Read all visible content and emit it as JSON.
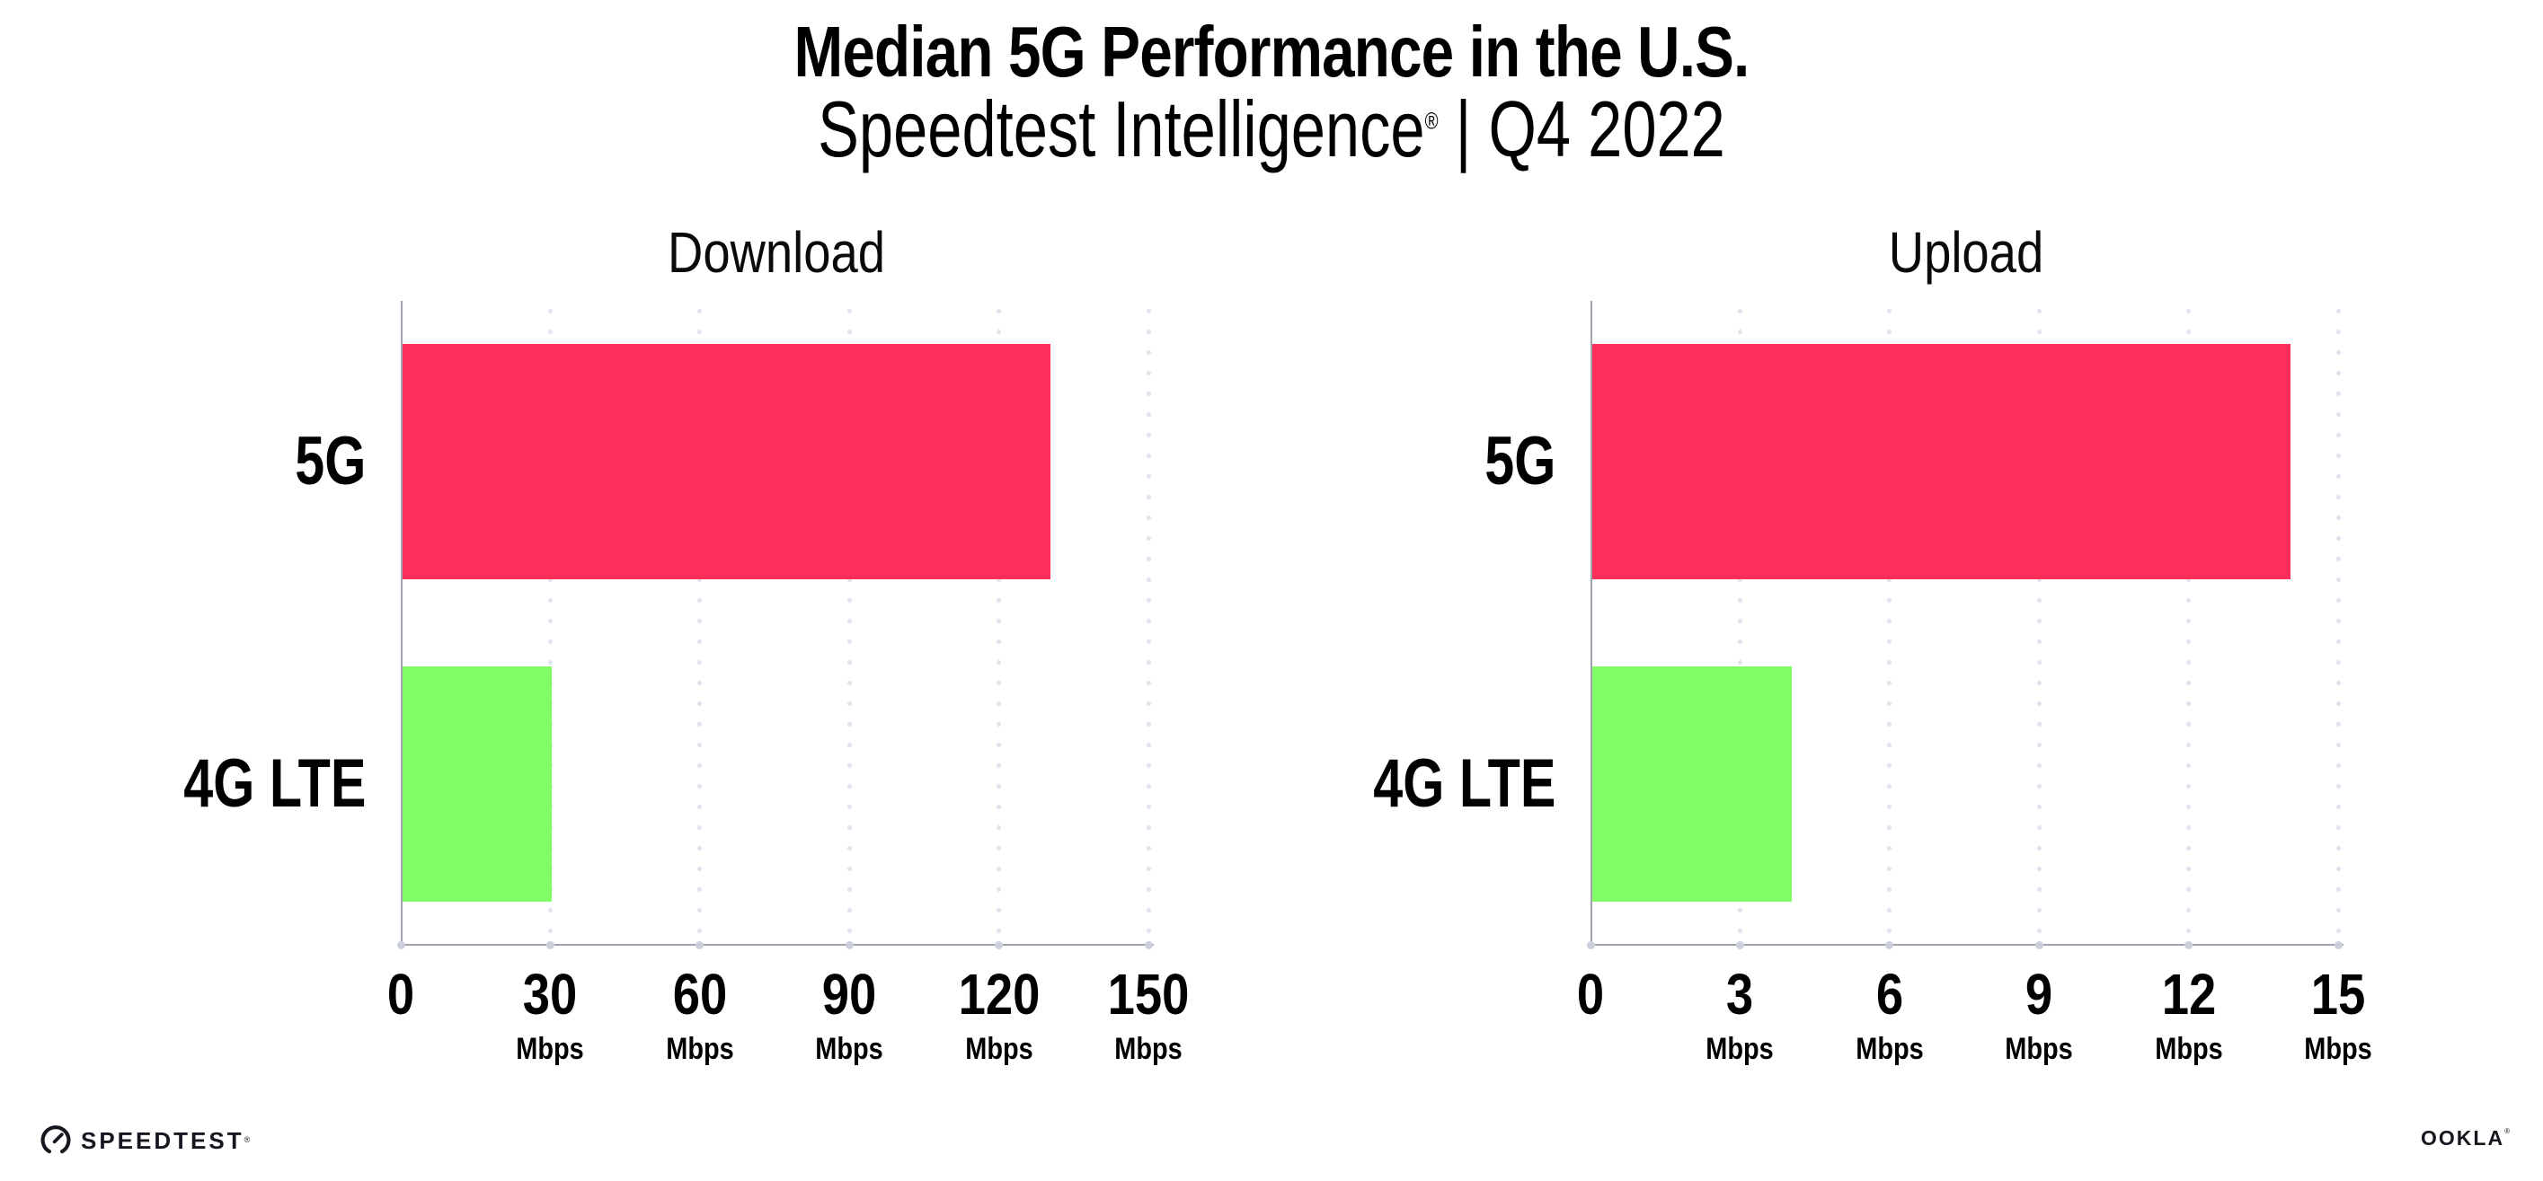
{
  "header": {
    "title": "Median 5G Performance in the U.S.",
    "subtitle_brand": "Speedtest Intelligence",
    "subtitle_mark": "®",
    "subtitle_rest": " | Q4 2022"
  },
  "chart_data": [
    {
      "type": "bar",
      "orientation": "horizontal",
      "title": "Download",
      "categories": [
        "5G",
        "4G LTE"
      ],
      "values": [
        130,
        30
      ],
      "unit": "Mbps",
      "xlabel": "",
      "ylabel": "",
      "xlim": [
        0,
        150
      ],
      "xticks": [
        0,
        30,
        60,
        90,
        120,
        150
      ],
      "bar_colors": [
        "#ff2d5a",
        "#80fc66"
      ],
      "grid": "dotted vertical gridlines at labeled ticks",
      "legend_position": "none"
    },
    {
      "type": "bar",
      "orientation": "horizontal",
      "title": "Upload",
      "categories": [
        "5G",
        "4G LTE"
      ],
      "values": [
        14,
        4
      ],
      "unit": "Mbps",
      "xlabel": "",
      "ylabel": "",
      "xlim": [
        0,
        15
      ],
      "xticks": [
        0,
        3,
        6,
        9,
        12,
        15
      ],
      "bar_colors": [
        "#ff2d5a",
        "#80fc66"
      ],
      "grid": "dotted vertical gridlines at labeled ticks",
      "legend_position": "none"
    }
  ],
  "footer": {
    "speedtest_wordmark": "SPEEDTEST",
    "speedtest_mark": "®",
    "ookla_wordmark": "OOKLA",
    "ookla_mark": "®"
  },
  "colors": {
    "bar_5g": "#ff2d5a",
    "bar_4g_lte": "#80fc66",
    "axis_line": "#a0a2ac",
    "grid_dot": "#e1e3ee",
    "tick_dot": "#ccd0dc",
    "text": "#000000",
    "logo_text": "#16161f",
    "background": "#ffffff"
  }
}
